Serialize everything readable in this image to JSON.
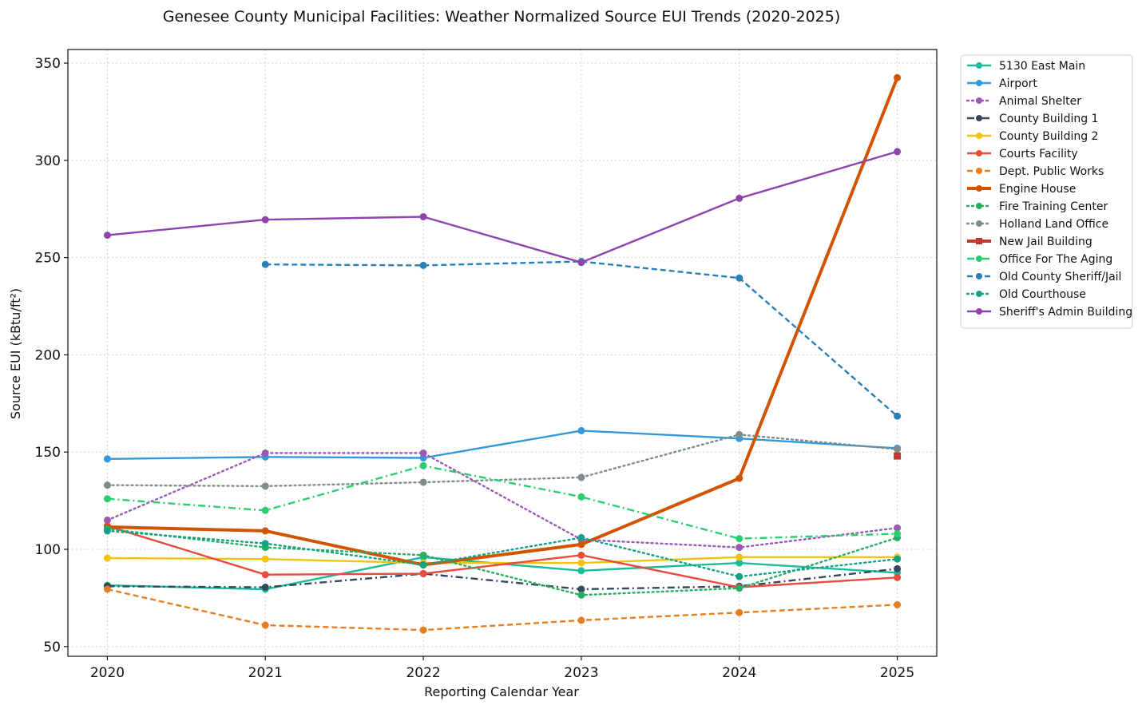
{
  "chart_data": {
    "type": "line",
    "title": "Genesee County Municipal Facilities: Weather Normalized Source EUI Trends (2020-2025)",
    "xlabel": "Reporting Calendar Year",
    "ylabel": "Source EUI (kBtu/ft²)",
    "x": [
      2020,
      2021,
      2022,
      2023,
      2024,
      2025
    ],
    "x_tick_labels": [
      "2020",
      "2021",
      "2022",
      "2023",
      "2024",
      "2025"
    ],
    "xlim": [
      2019.75,
      2025.25
    ],
    "y_ticks": [
      50,
      100,
      150,
      200,
      250,
      300,
      350
    ],
    "y_tick_labels": [
      "50",
      "100",
      "150",
      "200",
      "250",
      "300",
      "350"
    ],
    "ylim": [
      45,
      357
    ],
    "grid": true,
    "legend_position": "outside-right-top",
    "series": [
      {
        "name": "5130 East Main",
        "values": [
          81.5,
          79.5,
          96,
          89,
          93,
          88
        ],
        "color": "#1abc9c",
        "dash": "solid",
        "width": "normal",
        "marker": "circle"
      },
      {
        "name": "Airport",
        "values": [
          146.5,
          147.5,
          147,
          161,
          157,
          152
        ],
        "color": "#3498db",
        "dash": "solid",
        "width": "normal",
        "marker": "circle"
      },
      {
        "name": "Animal Shelter",
        "values": [
          115,
          149.5,
          149.5,
          105,
          101,
          111
        ],
        "color": "#9b59b6",
        "dash": "dotted",
        "width": "normal",
        "marker": "circle"
      },
      {
        "name": "County Building 1",
        "values": [
          81,
          80.5,
          87.5,
          79.5,
          81,
          90
        ],
        "color": "#34495e",
        "dash": "dashdot",
        "width": "normal",
        "marker": "circle"
      },
      {
        "name": "County Building 2",
        "values": [
          95.5,
          95,
          93,
          93,
          96,
          96
        ],
        "color": "#f1c40f",
        "dash": "solid",
        "width": "normal",
        "marker": "circle"
      },
      {
        "name": "Courts Facility",
        "values": [
          112,
          87,
          87.5,
          97,
          80.5,
          85.5
        ],
        "color": "#e74c3c",
        "dash": "solid",
        "width": "normal",
        "marker": "circle"
      },
      {
        "name": "Dept. Public Works",
        "values": [
          79.5,
          61,
          58.5,
          63.5,
          67.5,
          71.5
        ],
        "color": "#e67e22",
        "dash": "dashed",
        "width": "normal",
        "marker": "circle"
      },
      {
        "name": "Engine House",
        "values": [
          111.5,
          109.5,
          92,
          102.5,
          136.5,
          342.5
        ],
        "color": "#d35400",
        "dash": "solid",
        "width": "thick",
        "marker": "circle"
      },
      {
        "name": "Fire Training Center",
        "values": [
          110.5,
          101,
          97,
          76.5,
          80,
          106
        ],
        "color": "#27ae60",
        "dash": "dotted",
        "width": "normal",
        "marker": "circle"
      },
      {
        "name": "Holland Land Office",
        "values": [
          133,
          132.5,
          134.5,
          137,
          159,
          151.5
        ],
        "color": "#7f8c8d",
        "dash": "dotted",
        "width": "normal",
        "marker": "circle"
      },
      {
        "name": "New Jail Building",
        "values": [
          null,
          null,
          null,
          null,
          null,
          148
        ],
        "color": "#c0392b",
        "dash": "solid",
        "width": "thick",
        "marker": "square"
      },
      {
        "name": "Office For The Aging",
        "values": [
          126,
          120,
          143,
          127,
          105.5,
          108
        ],
        "color": "#2ecc71",
        "dash": "dashdot",
        "width": "normal",
        "marker": "circle"
      },
      {
        "name": "Old County Sheriff/Jail",
        "values": [
          null,
          246.5,
          246,
          248,
          239.5,
          168.5
        ],
        "color": "#2980b9",
        "dash": "dashed",
        "width": "normal",
        "marker": "circle"
      },
      {
        "name": "Old Courthouse",
        "values": [
          109.5,
          103,
          92,
          106,
          86,
          95
        ],
        "color": "#16a085",
        "dash": "dotted",
        "width": "normal",
        "marker": "circle"
      },
      {
        "name": "Sheriff's Admin Building",
        "values": [
          261.5,
          269.5,
          271,
          247.5,
          280.5,
          304.5
        ],
        "color": "#8e44ad",
        "dash": "solid",
        "width": "normal",
        "marker": "circle"
      }
    ]
  }
}
